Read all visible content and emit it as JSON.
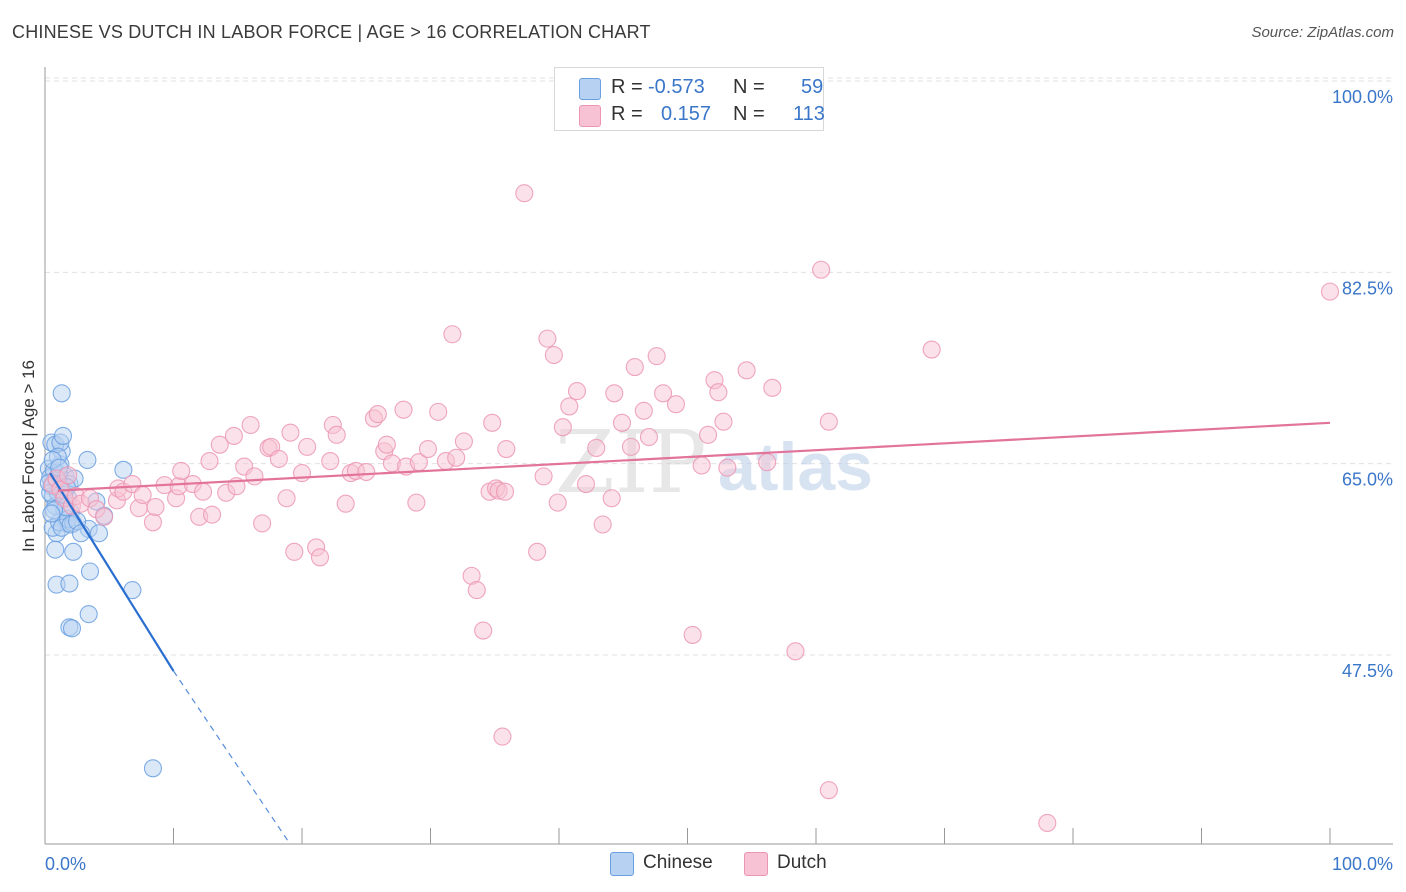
{
  "title": "CHINESE VS DUTCH IN LABOR FORCE | AGE > 16 CORRELATION CHART",
  "source": "Source: ZipAtlas.com",
  "watermark": {
    "zip": "ZIP",
    "atlas": "atlas"
  },
  "legend_top": {
    "rows": [
      {
        "r_label": "R =",
        "r_value": "-0.573",
        "n_label": "N =",
        "n_value": "59"
      },
      {
        "r_label": "R =",
        "r_value": "0.157",
        "n_label": "N =",
        "n_value": "113"
      }
    ]
  },
  "colors": {
    "chinese_fill": "#b7d1f2",
    "chinese_stroke": "#6a9fe0",
    "chinese_line": "#2a6fd0",
    "dutch_fill": "#f7c3d4",
    "dutch_stroke": "#ec96b4",
    "dutch_line": "#e2739a",
    "tick_label": "#3a76c9",
    "grid": "#e0e0e0"
  },
  "chart_data": {
    "type": "scatter",
    "title": "CHINESE VS DUTCH IN LABOR FORCE | AGE > 16 CORRELATION CHART",
    "xlabel": "",
    "ylabel": "In Labor Force | Age > 16",
    "xlim": [
      0,
      100
    ],
    "ylim": [
      32.5,
      102.5
    ],
    "x_tick_labels": [
      "0.0%",
      "100.0%"
    ],
    "y_ticks": [
      47.5,
      65.0,
      82.5,
      100.0
    ],
    "y_tick_labels": [
      "47.5%",
      "65.0%",
      "82.5%",
      "100.0%"
    ],
    "grid": true,
    "legend_position": "bottom-center",
    "series": [
      {
        "name": "Chinese",
        "r": -0.573,
        "n": 59,
        "trend": {
          "x0": 0.4,
          "y0": 65.6,
          "x1": 10.0,
          "y1": 47.5,
          "dash_x1": 19.0,
          "dash_y1": 31.8
        },
        "points": [
          [
            0.3,
            66.0
          ],
          [
            0.4,
            65.2
          ],
          [
            0.5,
            64.4
          ],
          [
            0.6,
            63.5
          ],
          [
            0.7,
            65.8
          ],
          [
            0.8,
            62.6
          ],
          [
            0.9,
            64.9
          ],
          [
            1.0,
            63.8
          ],
          [
            1.1,
            65.5
          ],
          [
            1.2,
            66.4
          ],
          [
            1.3,
            67.6
          ],
          [
            1.4,
            64.0
          ],
          [
            1.5,
            62.2
          ],
          [
            1.6,
            65.3
          ],
          [
            1.7,
            61.0
          ],
          [
            1.8,
            63.3
          ],
          [
            1.9,
            64.6
          ],
          [
            2.0,
            62.0
          ],
          [
            0.5,
            68.4
          ],
          [
            0.8,
            68.2
          ],
          [
            1.2,
            68.4
          ],
          [
            1.4,
            69.0
          ],
          [
            1.0,
            67.1
          ],
          [
            0.6,
            66.8
          ],
          [
            0.9,
            60.1
          ],
          [
            0.6,
            60.6
          ],
          [
            1.1,
            61.1
          ],
          [
            1.3,
            60.6
          ],
          [
            1.8,
            61.4
          ],
          [
            2.2,
            61.0
          ],
          [
            2.0,
            60.9
          ],
          [
            1.6,
            62.5
          ],
          [
            0.8,
            58.6
          ],
          [
            2.2,
            58.4
          ],
          [
            0.9,
            55.4
          ],
          [
            1.9,
            55.5
          ],
          [
            1.9,
            51.5
          ],
          [
            2.1,
            51.4
          ],
          [
            3.4,
            52.7
          ],
          [
            3.5,
            56.6
          ],
          [
            3.4,
            60.5
          ],
          [
            4.2,
            60.1
          ],
          [
            4.0,
            63.0
          ],
          [
            4.6,
            61.7
          ],
          [
            1.3,
            72.9
          ],
          [
            3.3,
            66.8
          ],
          [
            6.1,
            65.9
          ],
          [
            6.8,
            54.9
          ],
          [
            8.4,
            38.6
          ],
          [
            0.4,
            63.8
          ],
          [
            0.7,
            62.2
          ],
          [
            1.5,
            63.6
          ],
          [
            2.3,
            65.1
          ],
          [
            0.3,
            64.7
          ],
          [
            2.5,
            61.2
          ],
          [
            1.7,
            64.3
          ],
          [
            0.5,
            61.9
          ],
          [
            1.1,
            66.1
          ],
          [
            2.8,
            60.1
          ]
        ]
      },
      {
        "name": "Dutch",
        "r": 0.157,
        "n": 113,
        "trend": {
          "x0": 1.0,
          "y0": 64.0,
          "x1": 100.0,
          "y1": 70.2
        },
        "points": [
          [
            0.6,
            64.5
          ],
          [
            0.9,
            65.1
          ],
          [
            1.2,
            64.1
          ],
          [
            1.5,
            63.3
          ],
          [
            1.8,
            65.4
          ],
          [
            2.1,
            62.6
          ],
          [
            2.4,
            63.5
          ],
          [
            2.8,
            62.8
          ],
          [
            3.5,
            63.3
          ],
          [
            4.0,
            62.3
          ],
          [
            4.6,
            61.6
          ],
          [
            5.6,
            63.1
          ],
          [
            5.7,
            64.2
          ],
          [
            6.1,
            63.9
          ],
          [
            6.8,
            64.6
          ],
          [
            7.3,
            62.4
          ],
          [
            7.6,
            63.6
          ],
          [
            8.4,
            61.1
          ],
          [
            8.6,
            62.5
          ],
          [
            9.3,
            64.5
          ],
          [
            10.2,
            63.3
          ],
          [
            10.4,
            64.4
          ],
          [
            10.6,
            65.8
          ],
          [
            11.5,
            64.6
          ],
          [
            12.0,
            61.6
          ],
          [
            12.3,
            63.9
          ],
          [
            12.8,
            66.7
          ],
          [
            13.0,
            61.8
          ],
          [
            13.6,
            68.2
          ],
          [
            14.1,
            63.8
          ],
          [
            14.7,
            69.0
          ],
          [
            14.9,
            64.4
          ],
          [
            15.5,
            66.2
          ],
          [
            16.0,
            70.0
          ],
          [
            16.3,
            65.3
          ],
          [
            16.9,
            61.0
          ],
          [
            17.4,
            67.9
          ],
          [
            17.6,
            68.0
          ],
          [
            18.2,
            66.9
          ],
          [
            18.8,
            63.3
          ],
          [
            19.1,
            69.3
          ],
          [
            19.4,
            58.4
          ],
          [
            20.0,
            65.6
          ],
          [
            20.4,
            68.0
          ],
          [
            21.1,
            58.8
          ],
          [
            21.4,
            57.9
          ],
          [
            22.2,
            66.7
          ],
          [
            22.4,
            70.0
          ],
          [
            22.7,
            69.1
          ],
          [
            23.4,
            62.8
          ],
          [
            23.8,
            65.6
          ],
          [
            24.2,
            65.8
          ],
          [
            25.0,
            65.7
          ],
          [
            25.6,
            70.6
          ],
          [
            25.9,
            71.0
          ],
          [
            26.4,
            67.6
          ],
          [
            26.6,
            68.2
          ],
          [
            27.0,
            66.5
          ],
          [
            27.9,
            71.4
          ],
          [
            28.1,
            66.2
          ],
          [
            28.9,
            62.9
          ],
          [
            29.1,
            66.6
          ],
          [
            29.8,
            67.8
          ],
          [
            30.6,
            71.2
          ],
          [
            31.2,
            66.7
          ],
          [
            31.7,
            78.3
          ],
          [
            32.0,
            67.0
          ],
          [
            32.6,
            68.5
          ],
          [
            33.2,
            56.2
          ],
          [
            33.6,
            54.9
          ],
          [
            34.1,
            51.2
          ],
          [
            34.6,
            63.9
          ],
          [
            34.8,
            70.2
          ],
          [
            35.1,
            64.2
          ],
          [
            35.6,
            41.5
          ],
          [
            35.9,
            67.8
          ],
          [
            35.3,
            64.0
          ],
          [
            35.8,
            63.9
          ],
          [
            37.3,
            91.2
          ],
          [
            38.3,
            58.4
          ],
          [
            38.8,
            65.3
          ],
          [
            39.1,
            77.9
          ],
          [
            39.6,
            76.4
          ],
          [
            39.9,
            62.9
          ],
          [
            40.3,
            69.8
          ],
          [
            40.8,
            71.7
          ],
          [
            41.4,
            73.1
          ],
          [
            42.1,
            64.6
          ],
          [
            42.9,
            67.9
          ],
          [
            43.4,
            60.9
          ],
          [
            44.1,
            63.3
          ],
          [
            44.3,
            72.9
          ],
          [
            44.9,
            70.2
          ],
          [
            45.6,
            68.0
          ],
          [
            45.9,
            75.3
          ],
          [
            46.6,
            71.3
          ],
          [
            47.0,
            68.9
          ],
          [
            47.6,
            76.3
          ],
          [
            48.1,
            72.9
          ],
          [
            49.1,
            71.9
          ],
          [
            50.4,
            50.8
          ],
          [
            51.1,
            66.3
          ],
          [
            51.6,
            69.1
          ],
          [
            52.1,
            74.1
          ],
          [
            52.4,
            73.0
          ],
          [
            52.8,
            70.3
          ],
          [
            53.1,
            66.1
          ],
          [
            54.6,
            75.0
          ],
          [
            56.2,
            66.6
          ],
          [
            56.6,
            73.4
          ],
          [
            58.4,
            49.3
          ],
          [
            60.4,
            84.2
          ],
          [
            61.0,
            70.3
          ],
          [
            61.0,
            36.6
          ],
          [
            69.0,
            76.9
          ],
          [
            78.0,
            33.6
          ],
          [
            100.0,
            82.2
          ]
        ]
      }
    ]
  }
}
